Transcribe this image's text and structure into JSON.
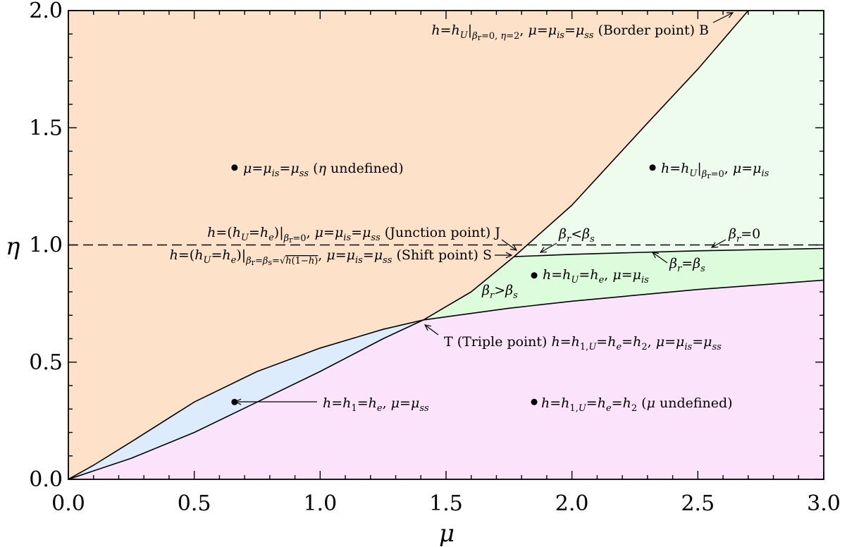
{
  "chart_data": {
    "type": "area",
    "xlabel": "μ",
    "ylabel": "η",
    "xlim": [
      0.0,
      3.0
    ],
    "ylim": [
      0.0,
      2.0
    ],
    "xticks": [
      "0.0",
      "0.5",
      "1.0",
      "1.5",
      "2.0",
      "2.5",
      "3.0"
    ],
    "yticks": [
      "0.0",
      "0.5",
      "1.0",
      "1.5",
      "2.0"
    ],
    "grid": false,
    "colors": {
      "orange_region": "#fde2c9",
      "pale_green_region": "#eefcee",
      "green_region": "#dcfcdc",
      "blue_region": "#dcecfc",
      "pink_region": "#fce3fc"
    },
    "series": [
      {
        "x": [
          0.0,
          0.25,
          0.5,
          0.75,
          1.0,
          1.25,
          1.41,
          1.6,
          1.77,
          2.0,
          2.3,
          2.5,
          2.7
        ],
        "y": [
          0.0,
          0.09,
          0.2,
          0.33,
          0.46,
          0.6,
          0.68,
          0.8,
          0.95,
          1.17,
          1.52,
          1.75,
          2.0
        ]
      },
      {
        "x": [
          0.0,
          0.1,
          0.25,
          0.5,
          0.75,
          1.0,
          1.25,
          1.41,
          1.75,
          2.0,
          2.5,
          3.0
        ],
        "y": [
          0.0,
          0.06,
          0.16,
          0.33,
          0.46,
          0.56,
          0.64,
          0.68,
          0.73,
          0.76,
          0.81,
          0.85
        ]
      },
      {
        "x": [
          1.77,
          2.0,
          2.5,
          3.0
        ],
        "y": [
          0.95,
          0.96,
          0.975,
          0.985
        ]
      }
    ],
    "reference_line": {
      "y": 1.0
    },
    "points": [
      {
        "x": 0.66,
        "y": 1.33
      },
      {
        "x": 2.32,
        "y": 1.33
      },
      {
        "x": 1.85,
        "y": 0.87
      },
      {
        "x": 0.66,
        "y": 0.33
      },
      {
        "x": 1.85,
        "y": 0.33
      }
    ],
    "annotations": {
      "border": "h=hU|βr=0, η=2, μ=μis=μss (Border point) B",
      "orange_region": "μ=μis=μss (η undefined)",
      "pale_green_region": "h=hU|βr=0, μ=μis",
      "junction": "h=(hU=he)|βr=0, μ=μis=μss (Junction point) J",
      "shift": "h=(hU=he)|βr=βs=√h(1−h), μ=μis=μss (Shift point) S",
      "br_lt_bs": "βr<βs",
      "br_zero": "βr=0",
      "br_eq_bs": "βr=βs",
      "green_region": "h=hU=he, μ=μis",
      "br_gt_bs": "βr>βs",
      "triple": "T (Triple point) h=h1,U=he=h2, μ=μis=μss",
      "blue_region": "h=h1=he, μ=μss",
      "pink_region": "h=h1,U=he=h2 (μ undefined)"
    }
  }
}
